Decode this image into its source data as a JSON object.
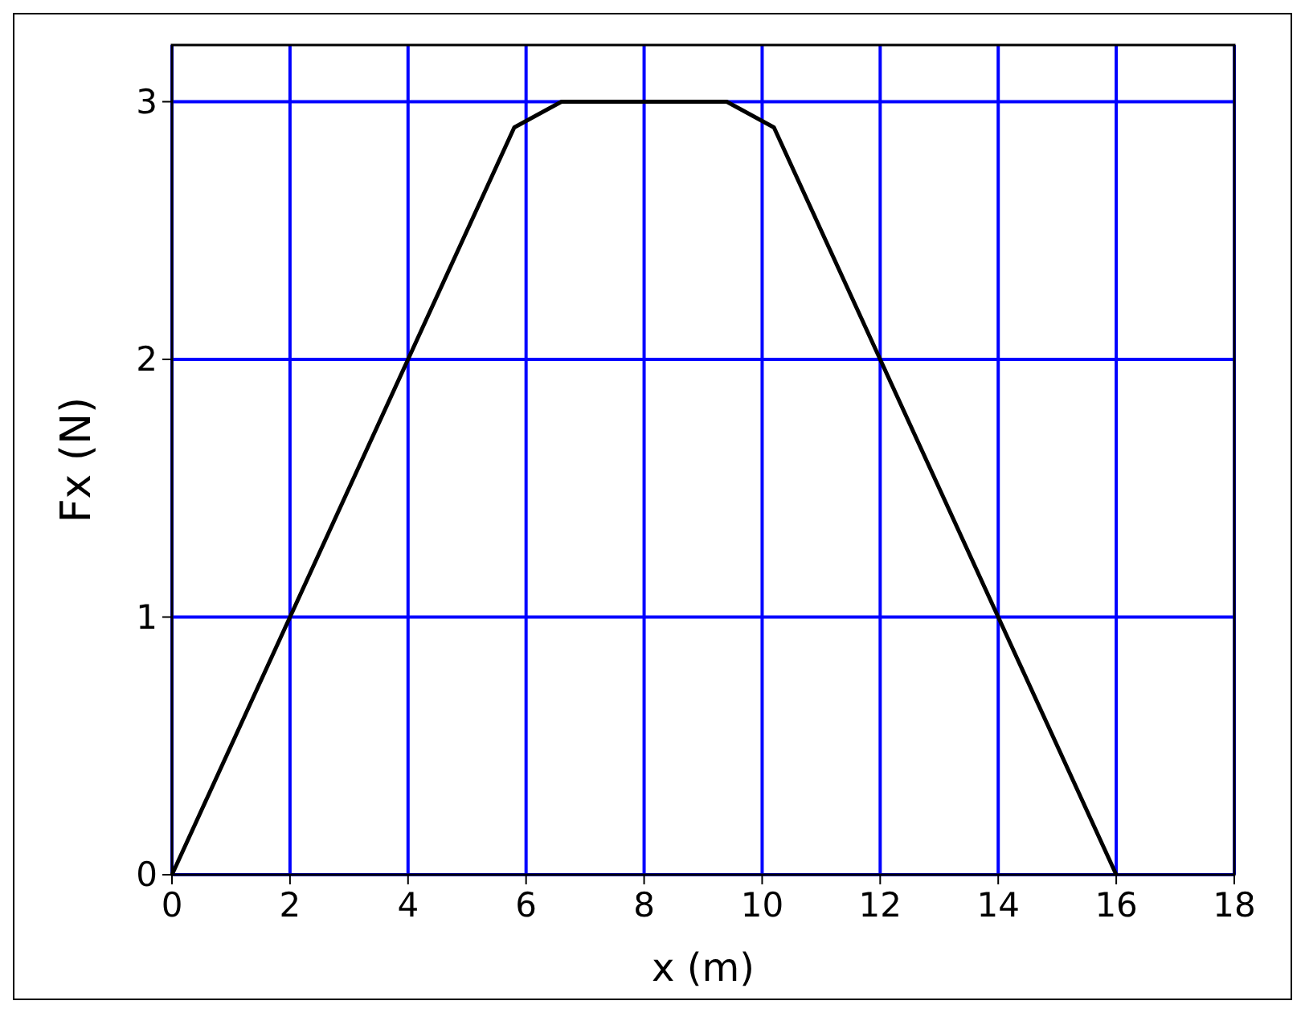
{
  "chart_data": {
    "type": "line",
    "xlabel": "x (m)",
    "ylabel": "Fx (N)",
    "series": [
      {
        "color": "#000000",
        "x": [
          0,
          2,
          4,
          5.8,
          6.6,
          9.4,
          10.2,
          12,
          14,
          16
        ],
        "values": [
          0,
          1,
          2,
          2.9,
          3,
          3,
          2.9,
          2,
          1,
          0
        ]
      }
    ],
    "xlim": [
      0,
      18
    ],
    "xticks": [
      0,
      2,
      4,
      6,
      8,
      10,
      12,
      14,
      16,
      18
    ],
    "ylim": [
      0,
      3.22
    ],
    "yticks": [
      0,
      1,
      2,
      3
    ],
    "grid": true,
    "marker": "none",
    "line_style": "solid"
  }
}
